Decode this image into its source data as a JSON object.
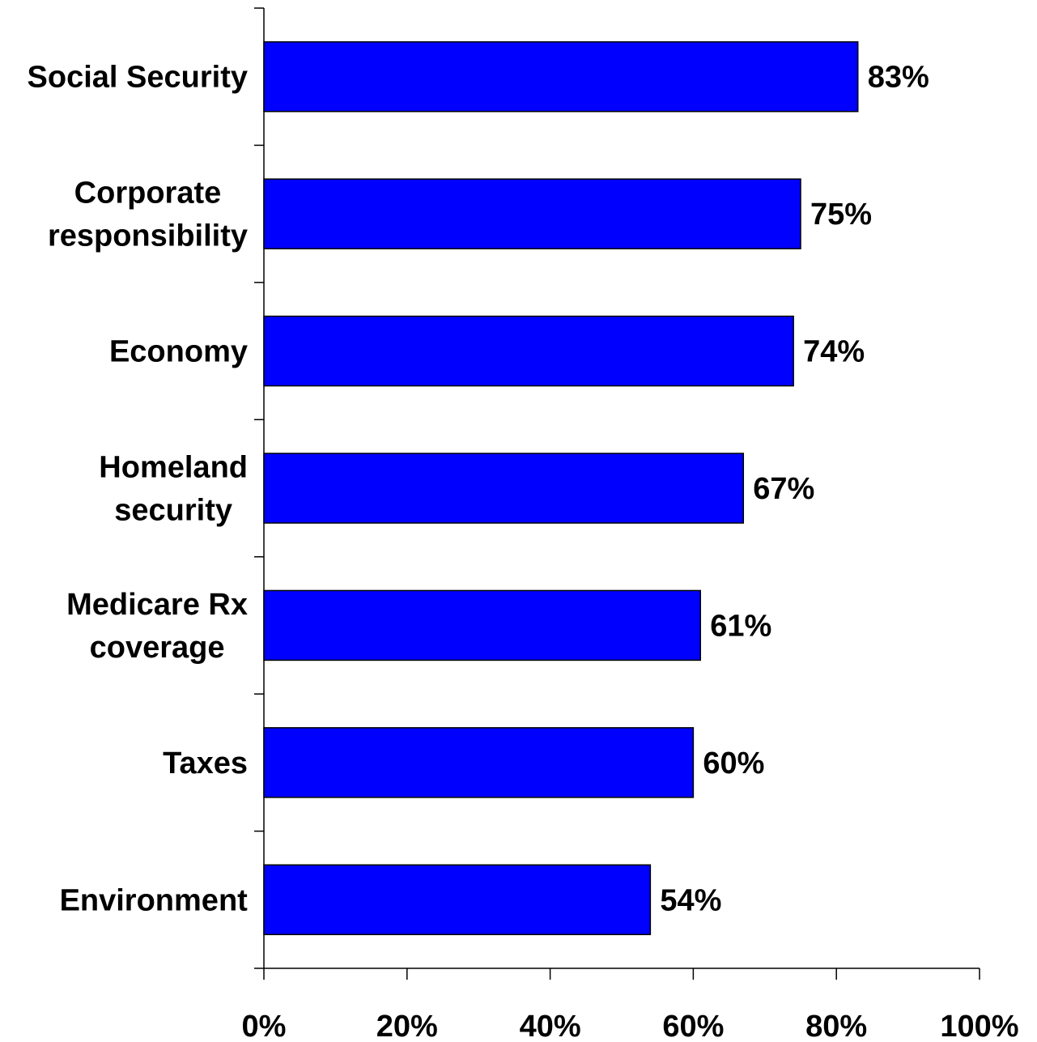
{
  "chart_data": {
    "type": "bar",
    "orientation": "horizontal",
    "categories": [
      [
        "Social Security"
      ],
      [
        "Corporate",
        "responsibility"
      ],
      [
        "Economy"
      ],
      [
        "Homeland",
        "security"
      ],
      [
        "Medicare Rx",
        "coverage"
      ],
      [
        "Taxes"
      ],
      [
        "Environment"
      ]
    ],
    "values": [
      83,
      75,
      74,
      67,
      61,
      60,
      54
    ],
    "value_labels": [
      "83%",
      "75%",
      "74%",
      "67%",
      "61%",
      "60%",
      "54%"
    ],
    "xlim": [
      0,
      100
    ],
    "x_ticks": [
      0,
      20,
      40,
      60,
      80,
      100
    ],
    "x_tick_labels": [
      "0%",
      "20%",
      "40%",
      "60%",
      "80%",
      "100%"
    ],
    "grid": false,
    "legend": "none",
    "bar_color": "#0000FF",
    "bar_edge_color": "#000000"
  }
}
